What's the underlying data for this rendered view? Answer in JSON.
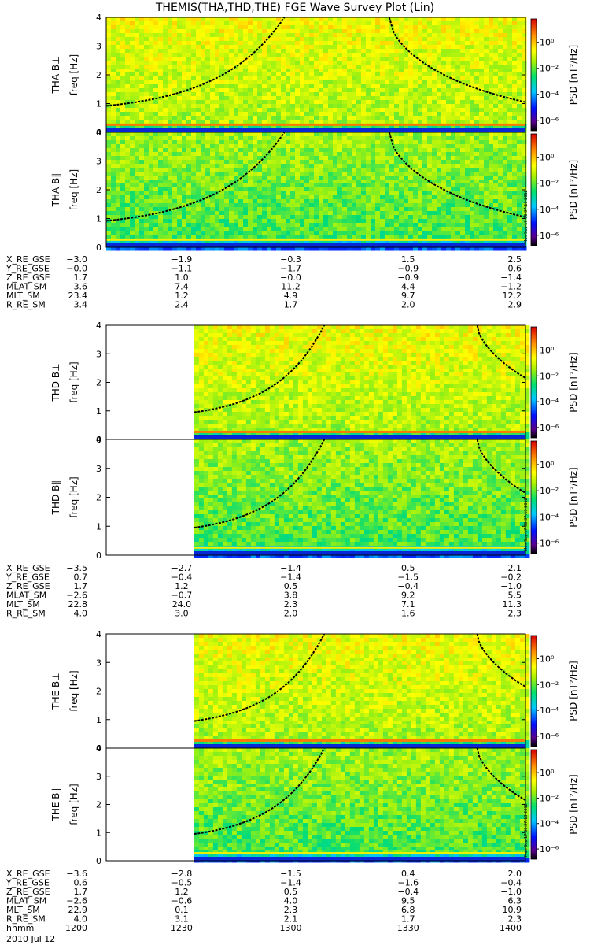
{
  "title": "THEMIS(THA,THD,THE) FGE Wave Survey Plot (Lin)",
  "colorbar": {
    "label": "PSD [nT²/Hz]",
    "ticks": [
      "10⁰",
      "10⁻²",
      "10⁻⁴",
      "10⁻⁶"
    ],
    "tick_values": [
      0,
      -2,
      -4,
      -6
    ],
    "range_log10": [
      -6.8,
      1.8
    ],
    "stamp": "Mon Sep 17 00:37:13 2012"
  },
  "chart_data": [
    {
      "type": "heatmap",
      "panel": "THA B⊥",
      "ylabel": "freq [Hz]",
      "yticks": [
        "0",
        "1",
        "2",
        "3",
        "4"
      ],
      "ylim": [
        0,
        4
      ],
      "x_range": [
        0,
        1
      ],
      "data_start": 0.0,
      "curves": [
        {
          "x_start": 0.0,
          "y_start": 0.92,
          "x_top": 0.425
        },
        {
          "x_top": 0.675,
          "x_end": 1.0,
          "y_end": 1.05
        }
      ]
    },
    {
      "type": "heatmap",
      "panel": "THA B∥",
      "ylabel": "freq [Hz]",
      "yticks": [
        "0",
        "1",
        "2",
        "3",
        "4"
      ],
      "ylim": [
        0,
        4
      ],
      "x_range": [
        0,
        1
      ],
      "data_start": 0.0,
      "curves": [
        {
          "x_start": 0.0,
          "y_start": 0.92,
          "x_top": 0.425
        },
        {
          "x_top": 0.675,
          "x_end": 1.0,
          "y_end": 1.05
        }
      ]
    },
    {
      "type": "heatmap",
      "panel": "THD B⊥",
      "ylabel": "freq [Hz]",
      "yticks": [
        "0",
        "1",
        "2",
        "3",
        "4"
      ],
      "ylim": [
        0,
        4
      ],
      "x_range": [
        0,
        1
      ],
      "data_start": 0.21,
      "curves": [
        {
          "x_start": 0.21,
          "y_start": 0.95,
          "x_top": 0.52
        },
        {
          "x_top": 0.885,
          "x_end": 1.0,
          "y_end": 2.15
        }
      ]
    },
    {
      "type": "heatmap",
      "panel": "THD B∥",
      "ylabel": "freq [Hz]",
      "yticks": [
        "0",
        "1",
        "2",
        "3",
        "4"
      ],
      "ylim": [
        0,
        4
      ],
      "x_range": [
        0,
        1
      ],
      "data_start": 0.21,
      "curves": [
        {
          "x_start": 0.21,
          "y_start": 0.95,
          "x_top": 0.52
        },
        {
          "x_top": 0.885,
          "x_end": 1.0,
          "y_end": 2.15
        }
      ]
    },
    {
      "type": "heatmap",
      "panel": "THE B⊥",
      "ylabel": "freq [Hz]",
      "yticks": [
        "0",
        "1",
        "2",
        "3",
        "4"
      ],
      "ylim": [
        0,
        4
      ],
      "x_range": [
        0,
        1
      ],
      "data_start": 0.21,
      "curves": [
        {
          "x_start": 0.21,
          "y_start": 0.95,
          "x_top": 0.52
        },
        {
          "x_top": 0.885,
          "x_end": 1.0,
          "y_end": 2.15
        }
      ]
    },
    {
      "type": "heatmap",
      "panel": "THE B∥",
      "ylabel": "freq [Hz]",
      "yticks": [
        "0",
        "1",
        "2",
        "3",
        "4"
      ],
      "ylim": [
        0,
        4
      ],
      "x_range": [
        0,
        1
      ],
      "data_start": 0.21,
      "curves": [
        {
          "x_start": 0.21,
          "y_start": 0.95,
          "x_top": 0.52
        },
        {
          "x_top": 0.885,
          "x_end": 1.0,
          "y_end": 2.15
        }
      ]
    }
  ],
  "ephemeris": [
    {
      "probe": "THA",
      "rows": [
        {
          "label": "X_RE_GSE",
          "values": [
            "−3.0",
            "−1.9",
            "−0.3",
            "1.5",
            "2.5"
          ]
        },
        {
          "label": "Y_RE_GSE",
          "values": [
            "−0.0",
            "−1.1",
            "−1.7",
            "−0.9",
            "0.6"
          ]
        },
        {
          "label": "Z_RE_GSE",
          "values": [
            "1.7",
            "1.0",
            "−0.0",
            "−0.9",
            "−1.4"
          ]
        },
        {
          "label": "MLAT_SM",
          "values": [
            "3.6",
            "7.4",
            "11.2",
            "4.4",
            "−1.2"
          ]
        },
        {
          "label": "MLT_SM",
          "values": [
            "23.4",
            "1.2",
            "4.9",
            "9.7",
            "12.2"
          ]
        },
        {
          "label": "R_RE_SM",
          "values": [
            "3.4",
            "2.4",
            "1.7",
            "2.0",
            "2.9"
          ]
        }
      ]
    },
    {
      "probe": "THD",
      "rows": [
        {
          "label": "X_RE_GSE",
          "values": [
            "−3.5",
            "−2.7",
            "−1.4",
            "0.5",
            "2.1"
          ]
        },
        {
          "label": "Y_RE_GSE",
          "values": [
            "0.7",
            "−0.4",
            "−1.4",
            "−1.5",
            "−0.2"
          ]
        },
        {
          "label": "Z_RE_GSE",
          "values": [
            "1.7",
            "1.2",
            "0.5",
            "−0.4",
            "−1.0"
          ]
        },
        {
          "label": "MLAT_SM",
          "values": [
            "−2.6",
            "−0.7",
            "3.8",
            "9.2",
            "5.5"
          ]
        },
        {
          "label": "MLT_SM",
          "values": [
            "22.8",
            "24.0",
            "2.3",
            "7.1",
            "11.3"
          ]
        },
        {
          "label": "R_RE_SM",
          "values": [
            "4.0",
            "3.0",
            "2.0",
            "1.6",
            "2.3"
          ]
        }
      ]
    },
    {
      "probe": "THE",
      "rows": [
        {
          "label": "X_RE_GSE",
          "values": [
            "−3.6",
            "−2.8",
            "−1.5",
            "0.4",
            "2.0"
          ]
        },
        {
          "label": "Y_RE_GSE",
          "values": [
            "0.6",
            "−0.5",
            "−1.4",
            "−1.6",
            "−0.4"
          ]
        },
        {
          "label": "Z_RE_GSE",
          "values": [
            "1.7",
            "1.2",
            "0.5",
            "−0.4",
            "−1.0"
          ]
        },
        {
          "label": "MLAT_SM",
          "values": [
            "−2.6",
            "−0.6",
            "4.0",
            "9.5",
            "6.3"
          ]
        },
        {
          "label": "MLT_SM",
          "values": [
            "22.9",
            "0.1",
            "2.3",
            "6.8",
            "10.9"
          ]
        },
        {
          "label": "R_RE_SM",
          "values": [
            "4.0",
            "3.1",
            "2.1",
            "1.7",
            "2.3"
          ]
        },
        {
          "label": "hhmm",
          "values": [
            "1200",
            "1230",
            "1300",
            "1330",
            "1400"
          ]
        }
      ]
    }
  ],
  "date": "2010 Jul 12"
}
